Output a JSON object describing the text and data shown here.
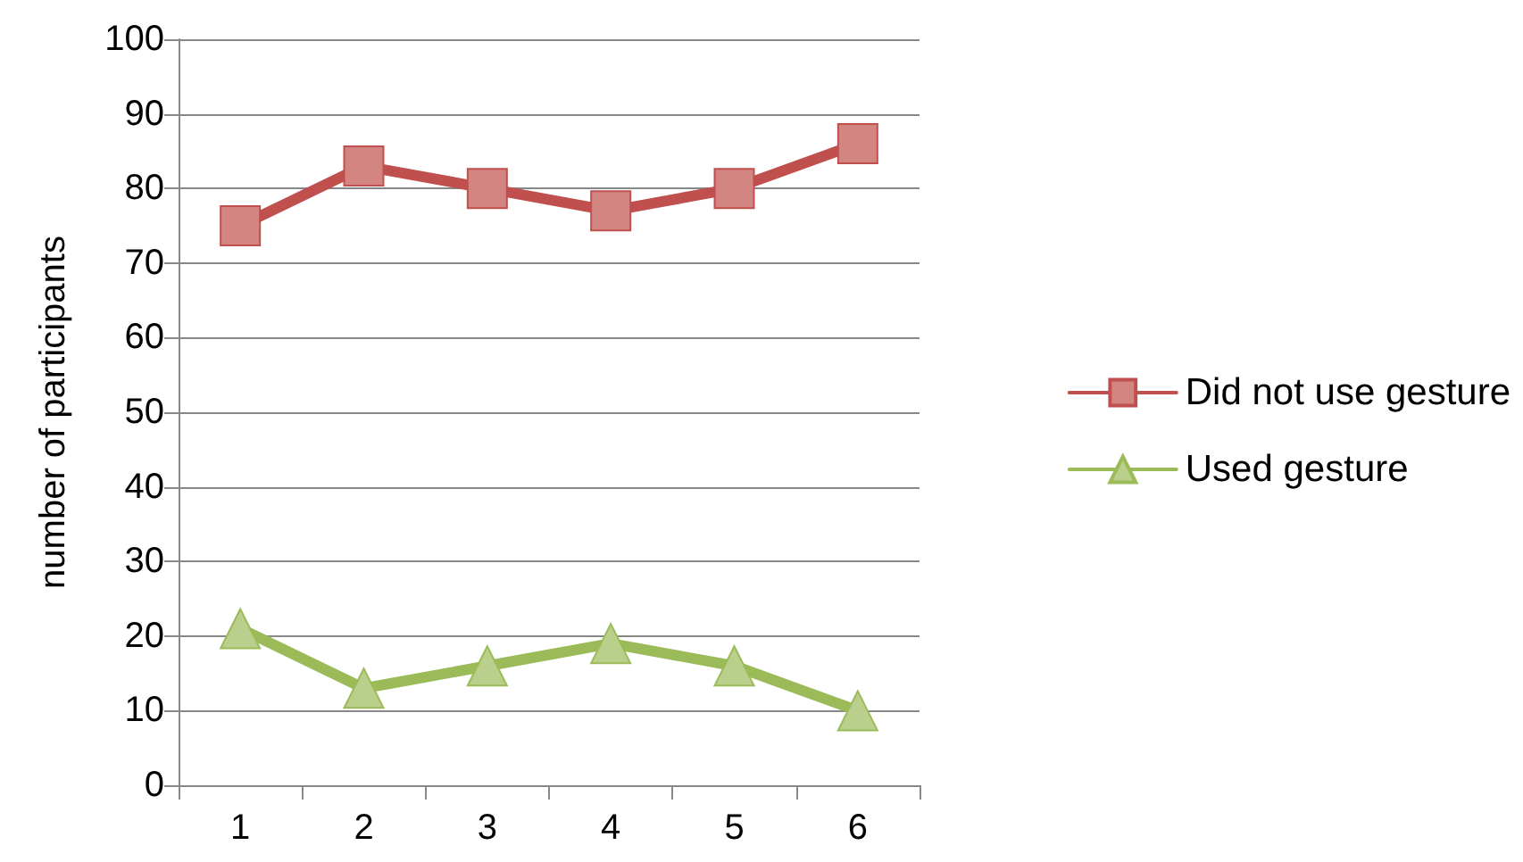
{
  "chart_data": {
    "type": "line",
    "ylabel": "number of participants",
    "categories": [
      "1",
      "2",
      "3",
      "4",
      "5",
      "6"
    ],
    "series": [
      {
        "name": "Did not use gesture",
        "color": "#c0504d",
        "marker": "square",
        "values": [
          75,
          83,
          80,
          77,
          80,
          86
        ]
      },
      {
        "name": "Used gesture",
        "color": "#9bbb59",
        "marker": "triangle",
        "values": [
          21,
          13,
          16,
          19,
          16,
          10
        ]
      }
    ],
    "ylim": [
      0,
      100
    ],
    "yticks": [
      0,
      10,
      20,
      30,
      40,
      50,
      60,
      70,
      80,
      90,
      100
    ],
    "grid": "y",
    "legend": "right",
    "line_style": "solid"
  }
}
